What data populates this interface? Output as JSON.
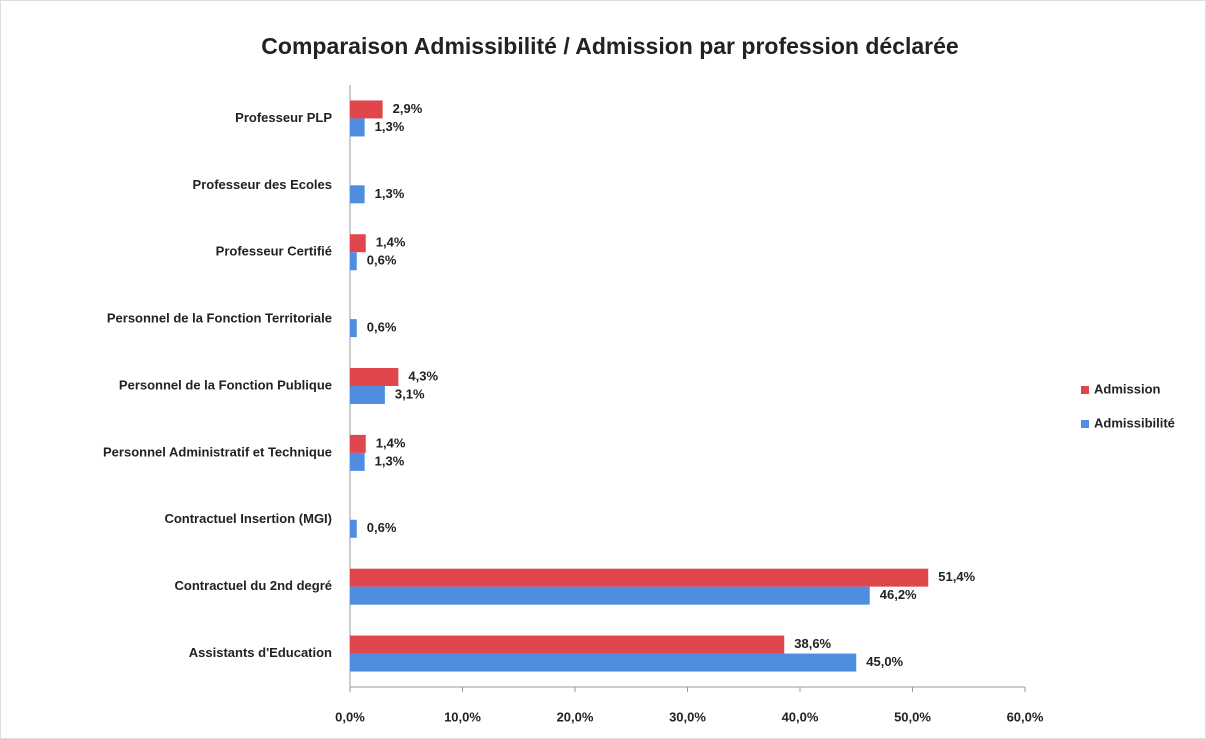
{
  "chart_data": {
    "type": "hbar",
    "title": "Comparaison Admissibilité / Admission par profession déclarée",
    "categories": [
      "Professeur PLP",
      "Professeur des Ecoles",
      "Professeur Certifié",
      "Personnel de la Fonction Territoriale",
      "Personnel de la Fonction Publique",
      "Personnel Administratif et Technique",
      "Contractuel Insertion (MGI)",
      "Contractuel du 2nd degré",
      "Assistants d'Education"
    ],
    "series": [
      {
        "name": "Admission",
        "color": "#e0474c",
        "values": [
          2.9,
          null,
          1.4,
          null,
          4.3,
          1.4,
          null,
          51.4,
          38.6
        ],
        "value_labels": [
          "2,9%",
          null,
          "1,4%",
          null,
          "4,3%",
          "1,4%",
          null,
          "51,4%",
          "38,6%"
        ]
      },
      {
        "name": "Admissibilité",
        "color": "#4f8de0",
        "values": [
          1.3,
          1.3,
          0.6,
          0.6,
          3.1,
          1.3,
          0.6,
          46.2,
          45.0
        ],
        "value_labels": [
          "1,3%",
          "1,3%",
          "0,6%",
          "0,6%",
          "3,1%",
          "1,3%",
          "0,6%",
          "46,2%",
          "45,0%"
        ]
      }
    ],
    "xlim": [
      0,
      60
    ],
    "xticks": [
      {
        "value": 0,
        "label": "0,0%"
      },
      {
        "value": 10,
        "label": "10,0%"
      },
      {
        "value": 20,
        "label": "20,0%"
      },
      {
        "value": 30,
        "label": "30,0%"
      },
      {
        "value": 40,
        "label": "40,0%"
      },
      {
        "value": 50,
        "label": "50,0%"
      },
      {
        "value": 60,
        "label": "60,0%"
      }
    ],
    "legend": "right"
  }
}
